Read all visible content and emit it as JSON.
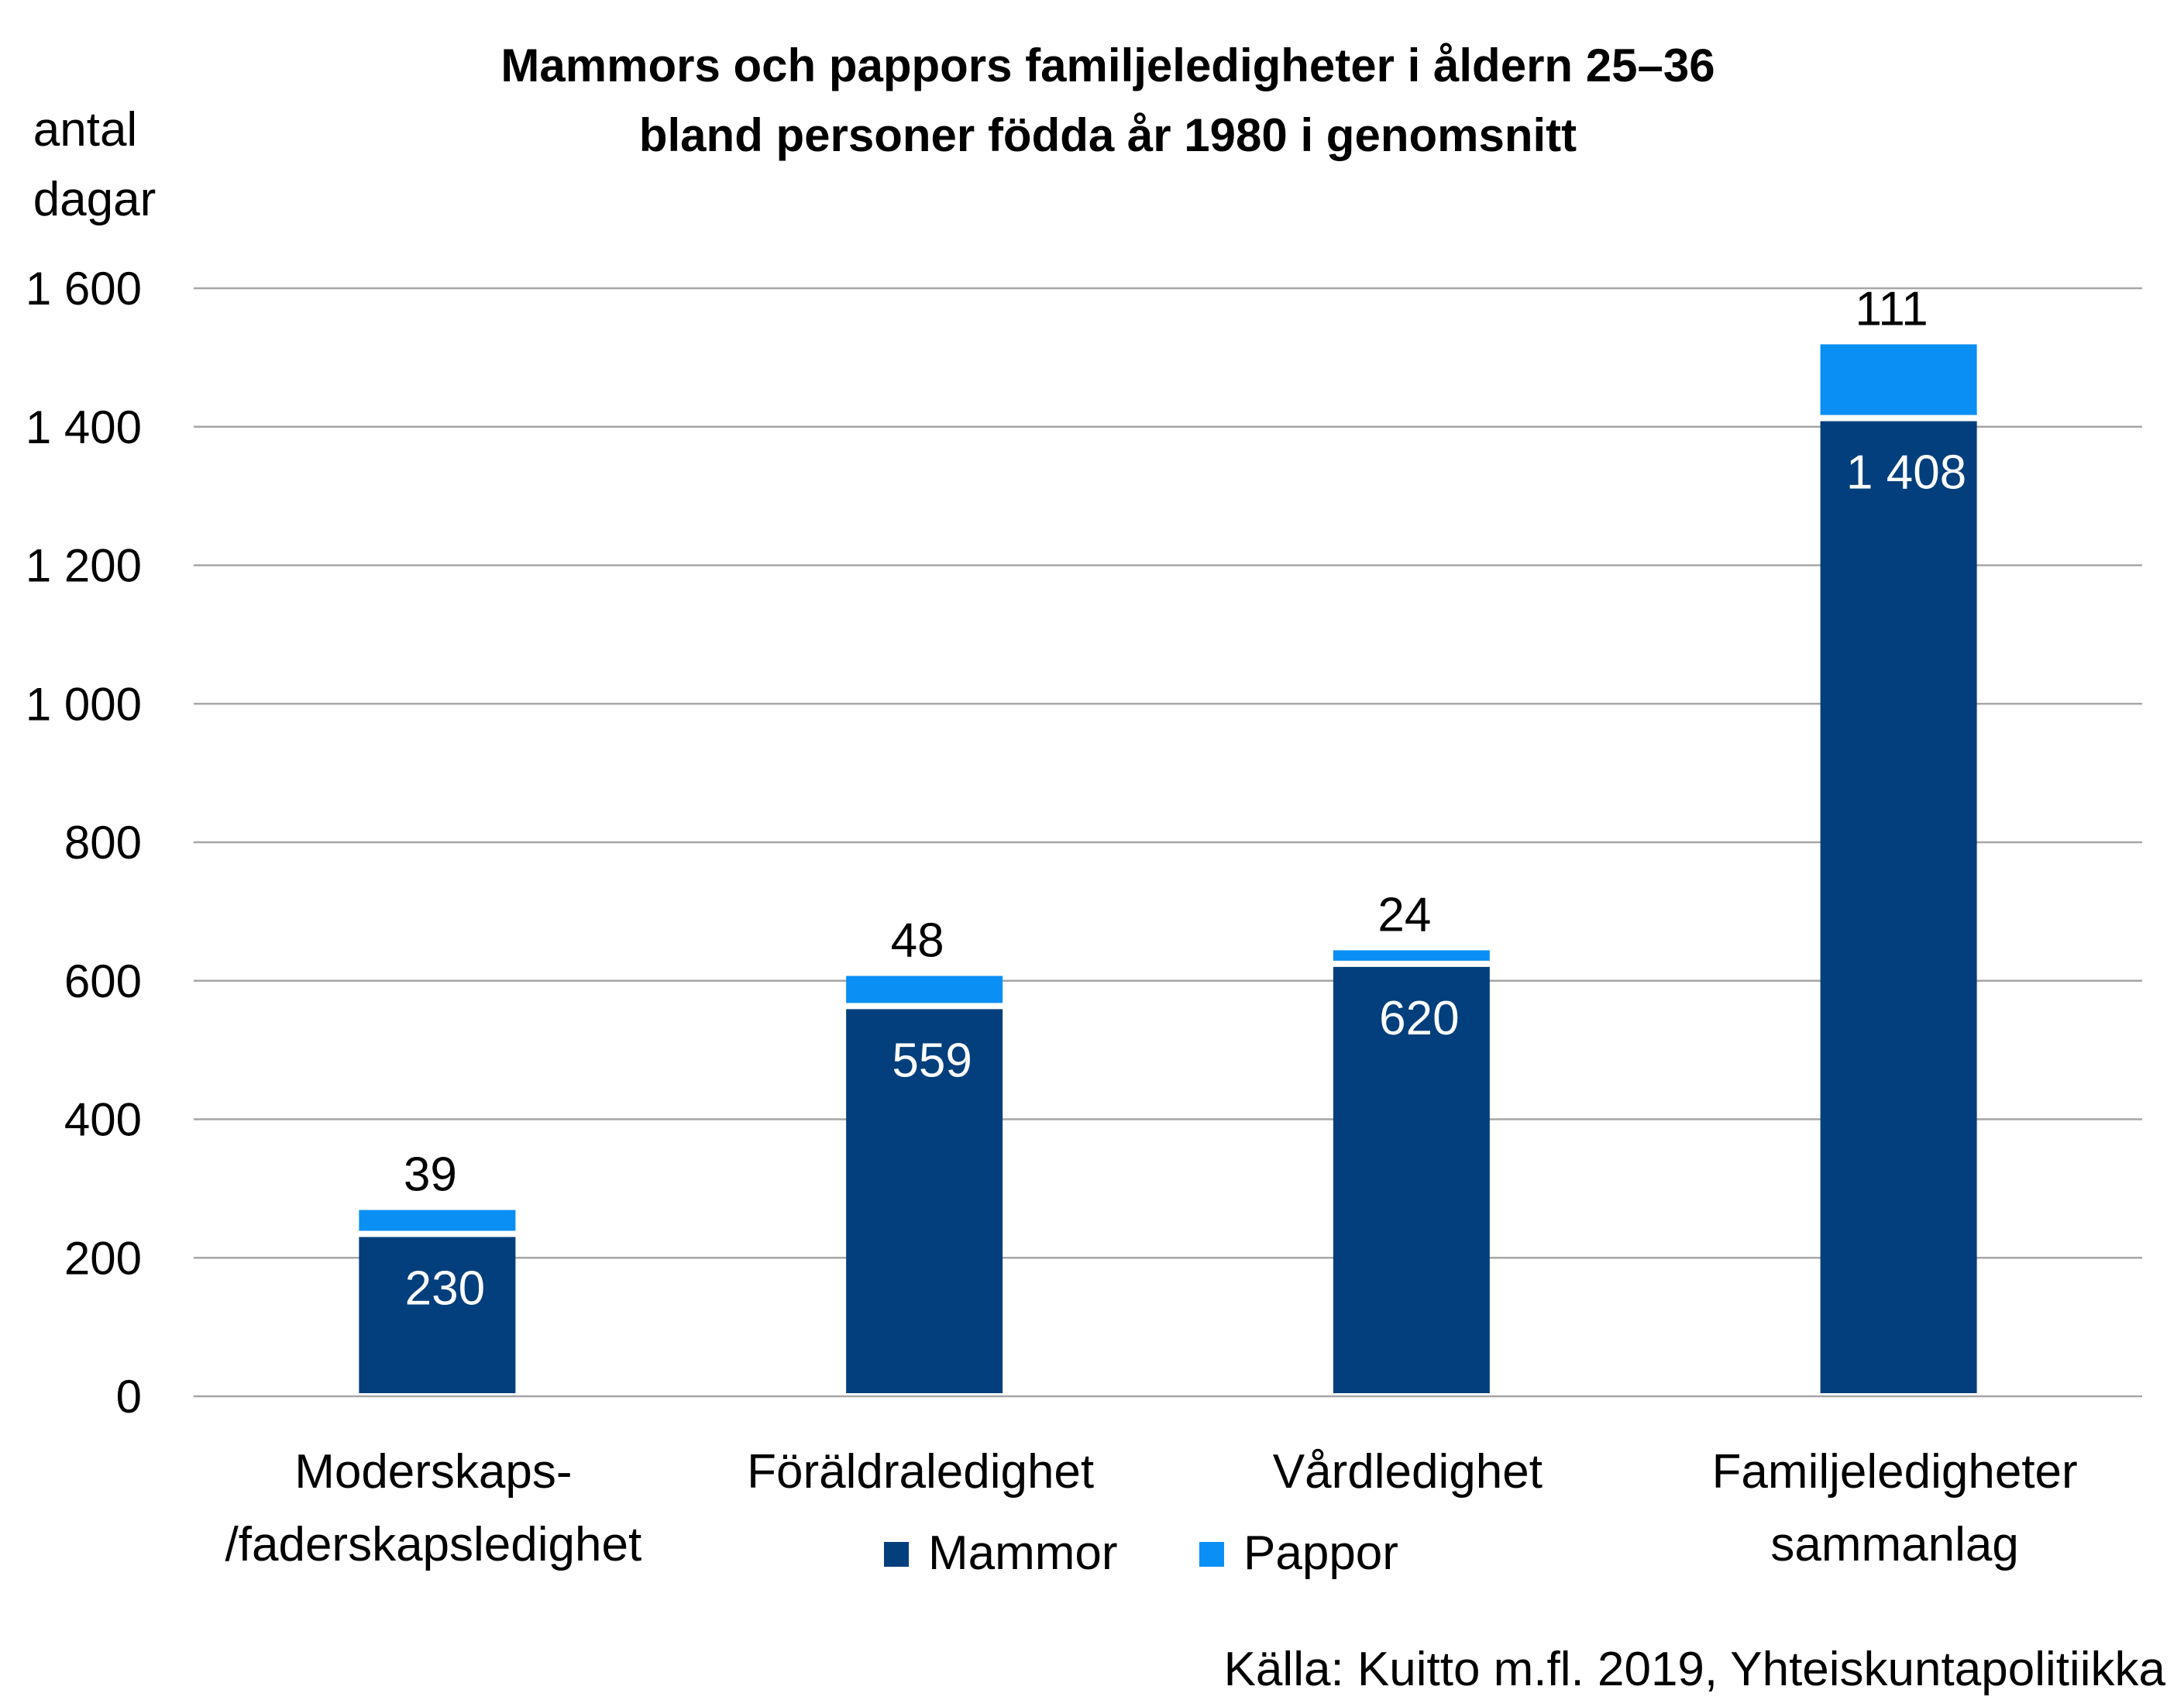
{
  "chart_data": {
    "type": "bar",
    "stacked": true,
    "title_lines": [
      "Mammors och pappors familjeledigheter i åldern 25–36",
      "bland personer födda år 1980 i genomsnitt"
    ],
    "ylabel_lines": [
      "antal",
      "dagar"
    ],
    "ylim": [
      0,
      1600
    ],
    "yticks": [
      0,
      200,
      400,
      600,
      800,
      1000,
      1200,
      1400,
      1600
    ],
    "ytick_labels": [
      "0",
      "200",
      "400",
      "600",
      "800",
      "1 000",
      "1 200",
      "1 400",
      "1 600"
    ],
    "grid": true,
    "categories": [
      [
        "Moderskaps-",
        "/faderskapsledighet"
      ],
      [
        "Föräldraledighet"
      ],
      [
        "Vårdledighet"
      ],
      [
        "Familjeledigheter",
        "sammanlag"
      ]
    ],
    "series": [
      {
        "name": "Mammor",
        "color": "#023f7c",
        "values": [
          230,
          559,
          620,
          1408
        ],
        "value_labels": [
          "230",
          "559",
          "620",
          "1 408"
        ]
      },
      {
        "name": "Pappor",
        "color": "#0a8ff5",
        "values": [
          39,
          48,
          24,
          111
        ],
        "value_labels": [
          "39",
          "48",
          "24",
          "111"
        ]
      }
    ],
    "legend_position": "bottom-center",
    "source": "Källa: Kuitto m.fl. 2019, Yhteiskuntapolitiikka",
    "colors": {
      "gridline": "#a6a6a6",
      "text": "#000000",
      "inside_label": "#ffffff",
      "separator": "#ffffff"
    }
  }
}
